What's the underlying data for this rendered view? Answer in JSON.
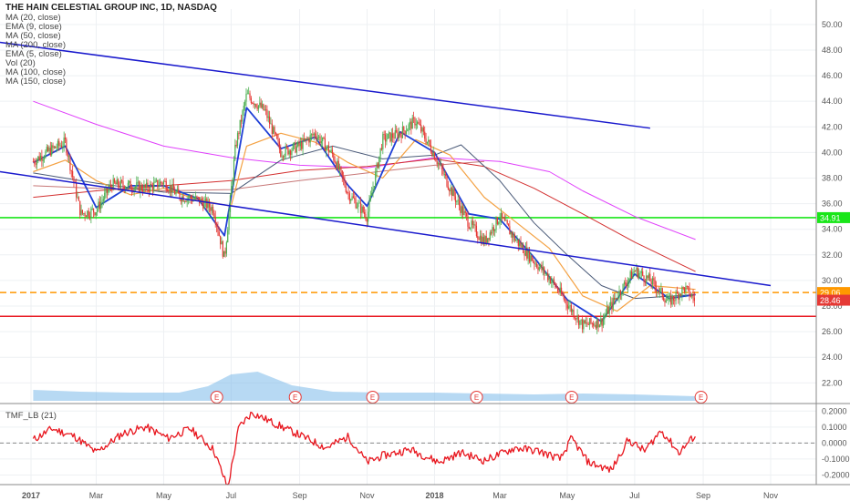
{
  "header": {
    "title": "THE HAIN CELESTIAL GROUP INC, 1D, NASDAQ",
    "indicators": [
      "MA (20, close)",
      "EMA (9, close)",
      "MA (50, close)",
      "MA (200, close)",
      "EMA (5, close)",
      "Vol (20)",
      "MA (100, close)",
      "MA (150, close)"
    ]
  },
  "colors": {
    "price_up": "#4caf50",
    "price_down": "#e53935",
    "trendline": "#1a1acd",
    "support_green": "#19e619",
    "support_red": "#e81c24",
    "resistance_orange": "#ff9800",
    "ema9": "#1f3fd6",
    "ma20": "#f4a142",
    "ma50": "#4a5a78",
    "ma100": "#d32f2f",
    "ma150": "#e040fb",
    "ma200": "#c77777",
    "volume": "#7bb9ea",
    "tmf": "#e8161e"
  },
  "chart_data": [
    {
      "type": "line",
      "title": "THE HAIN CELESTIAL GROUP INC, 1D, NASDAQ",
      "ylim": [
        20.6,
        51.2
      ],
      "y_ticks": [
        "22.00",
        "24.00",
        "26.00",
        "28.00",
        "30.00",
        "32.00",
        "34.00",
        "36.00",
        "38.00",
        "40.00",
        "42.00",
        "44.00",
        "46.00",
        "48.00",
        "50.00"
      ],
      "x_ticks": [
        "2017",
        "Mar",
        "May",
        "Jul",
        "Sep",
        "Nov",
        "2018",
        "Mar",
        "May",
        "Jul",
        "Sep",
        "Nov"
      ],
      "price_labels": {
        "green_level": "34.91",
        "orange_level": "29.06",
        "last_price": "28.46"
      },
      "series": [
        {
          "name": "price",
          "x": [
            "2017-01-03",
            "2017-01-17",
            "2017-02-01",
            "2017-02-15",
            "2017-03-01",
            "2017-03-15",
            "2017-04-01",
            "2017-04-15",
            "2017-05-01",
            "2017-05-15",
            "2017-06-01",
            "2017-06-15",
            "2017-06-25",
            "2017-07-05",
            "2017-07-15",
            "2017-08-01",
            "2017-08-15",
            "2017-09-01",
            "2017-09-15",
            "2017-10-01",
            "2017-10-15",
            "2017-11-01",
            "2017-11-15",
            "2017-12-01",
            "2017-12-15",
            "2018-01-01",
            "2018-01-15",
            "2018-02-01",
            "2018-02-15",
            "2018-03-01",
            "2018-03-15",
            "2018-04-01",
            "2018-04-15",
            "2018-05-01",
            "2018-05-15",
            "2018-06-01",
            "2018-06-15",
            "2018-07-01",
            "2018-07-15",
            "2018-08-01",
            "2018-08-15",
            "2018-08-25"
          ],
          "y": [
            39.3,
            40.1,
            40.8,
            35.2,
            35.5,
            37.5,
            37.4,
            37.2,
            37.7,
            36.6,
            36.3,
            35.6,
            31.7,
            40.5,
            44.5,
            43.2,
            40.0,
            40.5,
            41.5,
            39.8,
            36.8,
            35.0,
            41.0,
            41.5,
            42.5,
            39.8,
            37.2,
            34.5,
            33.0,
            35.0,
            33.2,
            31.5,
            30.2,
            28.2,
            26.5,
            26.8,
            28.8,
            30.8,
            30.0,
            28.3,
            29.4,
            28.46
          ]
        },
        {
          "name": "EMA (9, close)",
          "x": [
            "2017-01-03",
            "2017-02-01",
            "2017-03-01",
            "2017-04-01",
            "2017-05-01",
            "2017-06-01",
            "2017-06-25",
            "2017-07-15",
            "2017-08-15",
            "2017-09-15",
            "2017-10-15",
            "2017-11-01",
            "2017-12-01",
            "2018-01-01",
            "2018-02-01",
            "2018-03-01",
            "2018-04-01",
            "2018-05-01",
            "2018-06-01",
            "2018-07-01",
            "2018-08-01",
            "2018-08-25"
          ],
          "y": [
            39.2,
            40.5,
            35.7,
            37.4,
            37.4,
            36.4,
            33.5,
            43.5,
            40.3,
            41.2,
            37.4,
            35.8,
            41.6,
            40.0,
            35.2,
            34.8,
            31.8,
            28.5,
            26.8,
            30.5,
            28.6,
            28.9
          ]
        },
        {
          "name": "MA (20, close)",
          "x": [
            "2017-01-03",
            "2017-02-01",
            "2017-03-01",
            "2017-04-01",
            "2017-05-01",
            "2017-06-01",
            "2017-07-01",
            "2017-07-15",
            "2017-08-15",
            "2017-09-15",
            "2017-10-15",
            "2017-11-15",
            "2017-12-15",
            "2018-01-15",
            "2018-02-15",
            "2018-03-15",
            "2018-04-15",
            "2018-05-15",
            "2018-06-15",
            "2018-07-15",
            "2018-08-25"
          ],
          "y": [
            38.5,
            39.4,
            37.8,
            36.7,
            37.2,
            36.3,
            35.8,
            40.5,
            41.5,
            40.8,
            39.2,
            38.0,
            41.0,
            39.8,
            36.5,
            34.6,
            32.5,
            28.8,
            27.6,
            29.6,
            29.3
          ]
        },
        {
          "name": "MA (50, close)",
          "x": [
            "2017-01-03",
            "2017-03-01",
            "2017-05-01",
            "2017-07-01",
            "2017-08-15",
            "2017-10-01",
            "2017-11-15",
            "2018-01-01",
            "2018-01-25",
            "2018-03-01",
            "2018-04-01",
            "2018-05-01",
            "2018-06-01",
            "2018-07-01",
            "2018-08-25"
          ],
          "y": [
            38.4,
            37.6,
            36.9,
            36.8,
            39.4,
            40.5,
            39.5,
            39.8,
            40.6,
            37.8,
            34.5,
            32.0,
            29.6,
            28.6,
            28.9
          ]
        },
        {
          "name": "MA (100, close)",
          "x": [
            "2017-01-03",
            "2017-03-01",
            "2017-05-01",
            "2017-07-01",
            "2017-09-01",
            "2017-11-01",
            "2018-01-01",
            "2018-02-15",
            "2018-04-01",
            "2018-05-15",
            "2018-07-01",
            "2018-08-25"
          ],
          "y": [
            36.5,
            37.0,
            37.4,
            37.8,
            38.6,
            38.9,
            39.5,
            38.9,
            37.2,
            35.2,
            33.0,
            30.7
          ]
        },
        {
          "name": "MA (150, close)",
          "x": [
            "2017-01-03",
            "2017-03-01",
            "2017-05-01",
            "2017-07-01",
            "2017-09-01",
            "2017-11-01",
            "2018-01-01",
            "2018-03-01",
            "2018-04-15",
            "2018-05-15",
            "2018-07-01",
            "2018-08-25"
          ],
          "y": [
            44.0,
            42.2,
            40.5,
            39.6,
            39.0,
            38.8,
            39.6,
            39.3,
            38.5,
            37.0,
            35.0,
            33.2
          ]
        },
        {
          "name": "MA (200, close)",
          "x": [
            "2017-01-03",
            "2017-03-01",
            "2017-05-01",
            "2017-07-01",
            "2017-09-01",
            "2017-11-01",
            "2018-01-01",
            "2018-02-15"
          ],
          "y": [
            37.4,
            37.2,
            37.0,
            37.1,
            37.8,
            38.4,
            39.0,
            39.3
          ]
        },
        {
          "name": "Vol (20)",
          "x": [
            "2017-01-03",
            "2017-02-15",
            "2017-04-01",
            "2017-05-15",
            "2017-06-10",
            "2017-07-01",
            "2017-07-25",
            "2017-08-25",
            "2017-10-01",
            "2017-11-15",
            "2018-01-01",
            "2018-02-15",
            "2018-04-01",
            "2018-05-15",
            "2018-07-01",
            "2018-08-25"
          ],
          "y": [
            1.2,
            1.0,
            0.9,
            0.9,
            1.6,
            2.9,
            3.2,
            1.7,
            1.0,
            0.9,
            0.9,
            0.8,
            0.7,
            0.8,
            0.7,
            0.5
          ]
        }
      ]
    },
    {
      "type": "line",
      "title": "TMF_LB (21)",
      "ylim": [
        -0.26,
        0.23
      ],
      "y_ticks": [
        "0.2000",
        "0.1000",
        "0.0000",
        "-0.1000",
        "-0.2000"
      ],
      "series": [
        {
          "name": "TMF_LB (21)",
          "x": [
            "2017-01-03",
            "2017-01-20",
            "2017-02-10",
            "2017-03-01",
            "2017-03-25",
            "2017-04-15",
            "2017-05-05",
            "2017-05-25",
            "2017-06-15",
            "2017-06-28",
            "2017-07-08",
            "2017-07-20",
            "2017-08-10",
            "2017-09-01",
            "2017-09-25",
            "2017-10-15",
            "2017-11-01",
            "2017-11-15",
            "2017-12-10",
            "2018-01-05",
            "2018-01-25",
            "2018-02-15",
            "2018-03-15",
            "2018-04-05",
            "2018-04-25",
            "2018-05-05",
            "2018-05-20",
            "2018-06-10",
            "2018-06-25",
            "2018-07-10",
            "2018-07-25",
            "2018-08-10",
            "2018-08-25"
          ],
          "y": [
            0.02,
            0.09,
            0.04,
            -0.06,
            0.06,
            0.1,
            0.03,
            0.09,
            -0.04,
            -0.28,
            0.1,
            0.19,
            0.12,
            0.05,
            -0.03,
            0.04,
            -0.12,
            -0.08,
            -0.04,
            -0.12,
            -0.06,
            -0.11,
            -0.03,
            -0.05,
            -0.1,
            0.03,
            -0.12,
            -0.17,
            0.02,
            -0.05,
            0.08,
            -0.06,
            0.05
          ]
        }
      ]
    }
  ]
}
